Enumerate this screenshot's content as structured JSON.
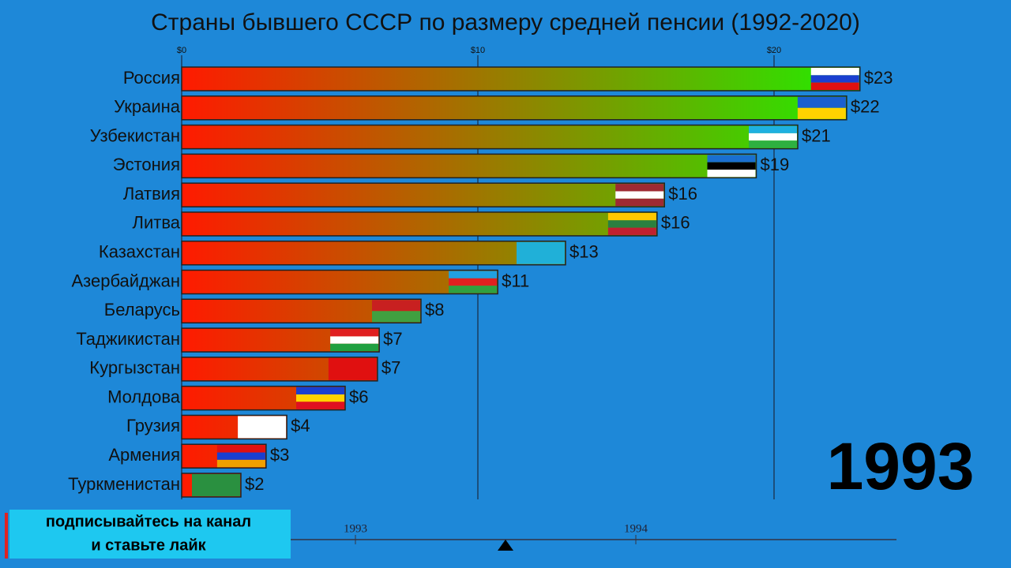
{
  "chart_data": {
    "type": "bar",
    "orientation": "horizontal",
    "title": "Страны бывшего СССР по размеру средней пенсии (1992-2020)",
    "categories": [
      "Россия",
      "Украина",
      "Узбекистан",
      "Эстония",
      "Латвия",
      "Литва",
      "Казахстан",
      "Азербайджан",
      "Беларусь",
      "Таджикистан",
      "Кургызстан",
      "Молдова",
      "Грузия",
      "Армения",
      "Туркменистан"
    ],
    "values": [
      22.9,
      22.45,
      20.8,
      19.4,
      16.3,
      16.05,
      12.96,
      10.67,
      8.08,
      6.67,
      6.61,
      5.52,
      3.55,
      2.85,
      2.0
    ],
    "value_labels": [
      "$23",
      "$22",
      "$21",
      "$19",
      "$16",
      "$16",
      "$13",
      "$11",
      "$8",
      "$7",
      "$7",
      "$6",
      "$4",
      "$3",
      "$2"
    ],
    "xlim": [
      0,
      23.2
    ],
    "xticks": [
      {
        "value": 0,
        "label": "$0"
      },
      {
        "value": 10,
        "label": "$10"
      },
      {
        "value": 20,
        "label": "$20"
      }
    ],
    "grid": true,
    "color_start": "#ff1a00",
    "color_end": "#22ee00",
    "year_label": "1993"
  },
  "timeline": {
    "labels": [
      "1993",
      "1994"
    ]
  },
  "banner": {
    "lines": [
      "подписывайтесь на канал",
      "и ставьте лайк"
    ]
  }
}
